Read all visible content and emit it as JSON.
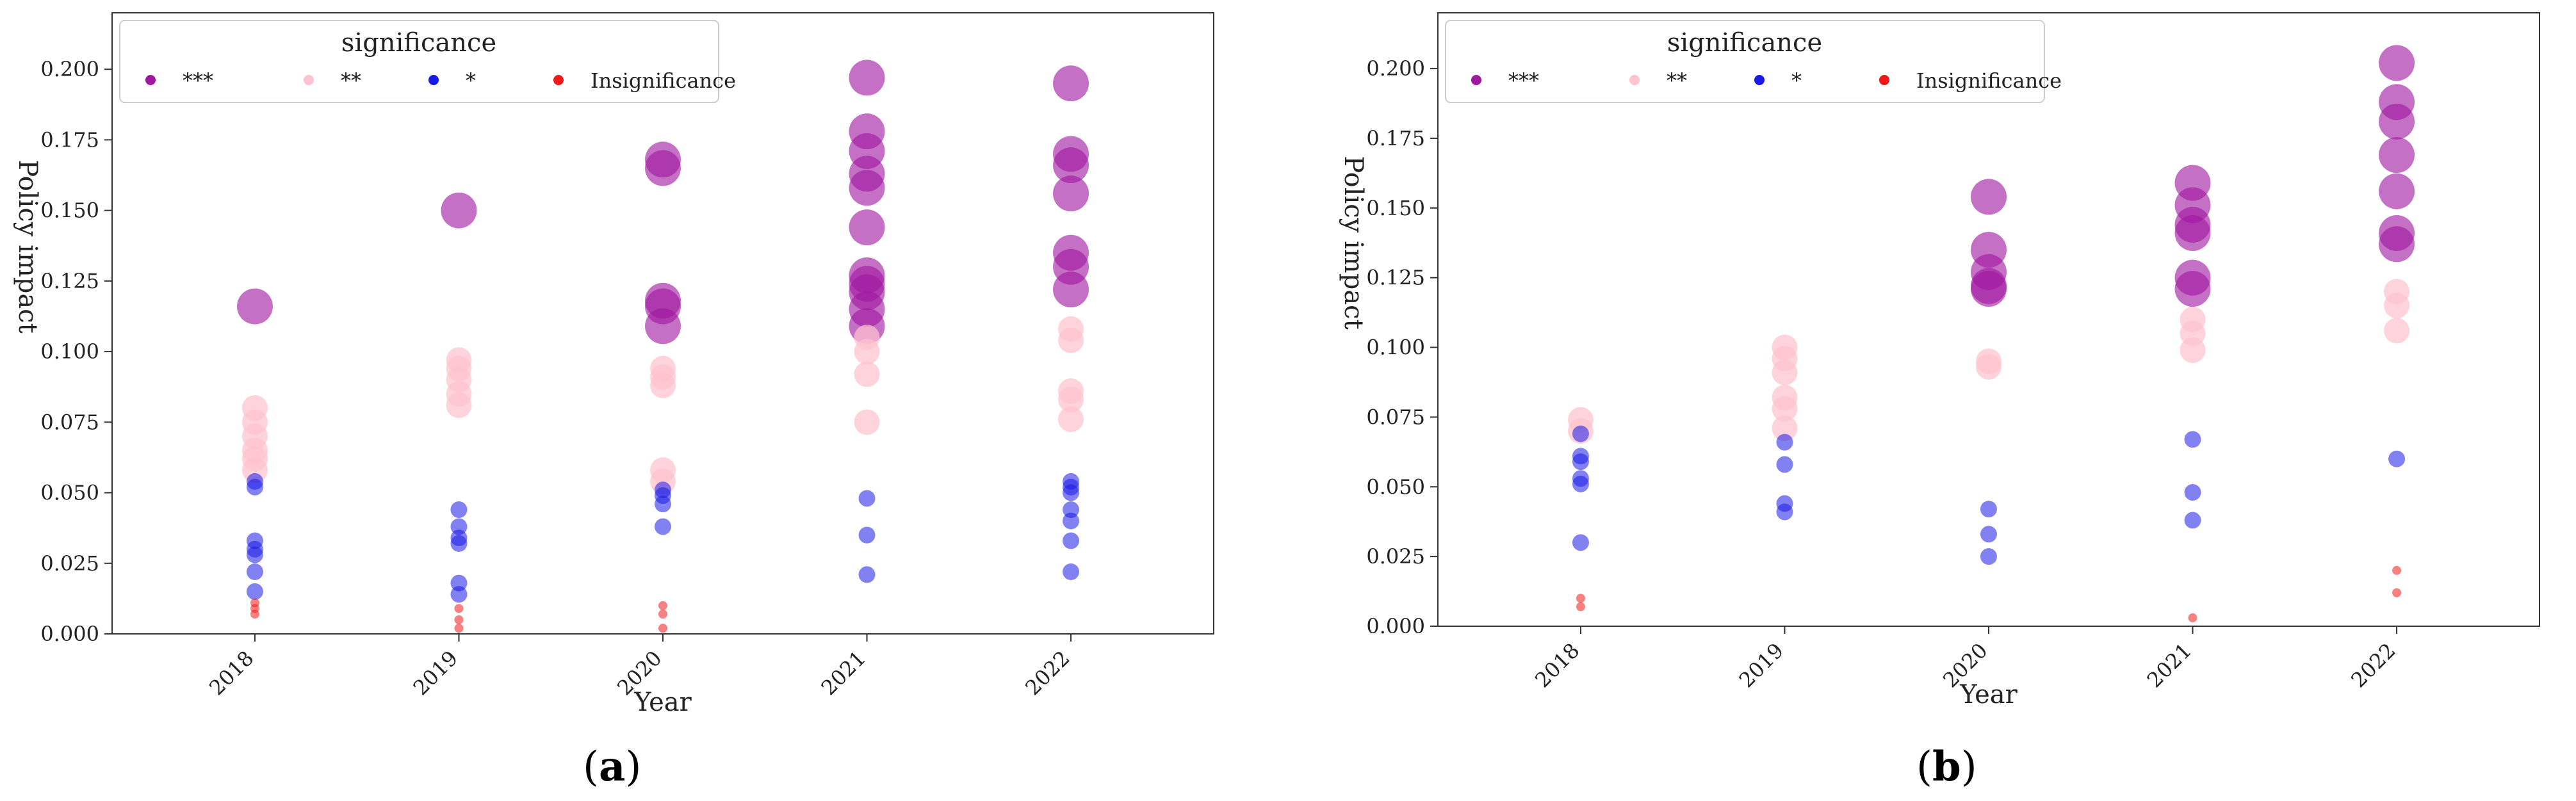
{
  "figure_labels": {
    "a": {
      "open": "(",
      "letter": "a",
      "close": ")"
    },
    "b": {
      "open": "(",
      "letter": "b",
      "close": ")"
    }
  },
  "colors": {
    "***": "#a0189f",
    "**": "#ffc2cf",
    "*": "#1a1ae6",
    "Insignificance": "#f01818"
  },
  "chart_data": [
    {
      "id": "a",
      "type": "scatter",
      "title": "",
      "xlabel": "Year",
      "ylabel": "Policy impact",
      "categories": [
        "2018",
        "2019",
        "2020",
        "2021",
        "2022"
      ],
      "ylim": [
        0,
        0.22
      ],
      "yticks": [
        0.0,
        0.025,
        0.05,
        0.075,
        0.1,
        0.125,
        0.15,
        0.175,
        0.2
      ],
      "ytick_labels": [
        "0.000",
        "0.025",
        "0.050",
        "0.075",
        "0.100",
        "0.125",
        "0.150",
        "0.175",
        "0.200"
      ],
      "legend": {
        "title": "significance",
        "placement": "top-left",
        "entries": [
          "***",
          "**",
          "*",
          "Insignificance"
        ]
      },
      "series": [
        {
          "name": "***",
          "points": [
            [
              "2018",
              0.116
            ],
            [
              "2019",
              0.15
            ],
            [
              "2020",
              0.168
            ],
            [
              "2020",
              0.165
            ],
            [
              "2020",
              0.118
            ],
            [
              "2020",
              0.116
            ],
            [
              "2020",
              0.109
            ],
            [
              "2021",
              0.197
            ],
            [
              "2021",
              0.178
            ],
            [
              "2021",
              0.171
            ],
            [
              "2021",
              0.163
            ],
            [
              "2021",
              0.158
            ],
            [
              "2021",
              0.144
            ],
            [
              "2021",
              0.127
            ],
            [
              "2021",
              0.124
            ],
            [
              "2021",
              0.121
            ],
            [
              "2021",
              0.115
            ],
            [
              "2021",
              0.109
            ],
            [
              "2022",
              0.195
            ],
            [
              "2022",
              0.17
            ],
            [
              "2022",
              0.166
            ],
            [
              "2022",
              0.156
            ],
            [
              "2022",
              0.135
            ],
            [
              "2022",
              0.13
            ],
            [
              "2022",
              0.122
            ]
          ]
        },
        {
          "name": "**",
          "points": [
            [
              "2018",
              0.08
            ],
            [
              "2018",
              0.075
            ],
            [
              "2018",
              0.07
            ],
            [
              "2018",
              0.065
            ],
            [
              "2018",
              0.062
            ],
            [
              "2018",
              0.058
            ],
            [
              "2019",
              0.097
            ],
            [
              "2019",
              0.094
            ],
            [
              "2019",
              0.09
            ],
            [
              "2019",
              0.085
            ],
            [
              "2019",
              0.081
            ],
            [
              "2020",
              0.094
            ],
            [
              "2020",
              0.091
            ],
            [
              "2020",
              0.088
            ],
            [
              "2020",
              0.058
            ],
            [
              "2020",
              0.054
            ],
            [
              "2021",
              0.105
            ],
            [
              "2021",
              0.1
            ],
            [
              "2021",
              0.092
            ],
            [
              "2021",
              0.075
            ],
            [
              "2022",
              0.108
            ],
            [
              "2022",
              0.104
            ],
            [
              "2022",
              0.086
            ],
            [
              "2022",
              0.083
            ],
            [
              "2022",
              0.076
            ]
          ]
        },
        {
          "name": "*",
          "points": [
            [
              "2018",
              0.054
            ],
            [
              "2018",
              0.052
            ],
            [
              "2018",
              0.033
            ],
            [
              "2018",
              0.03
            ],
            [
              "2018",
              0.028
            ],
            [
              "2018",
              0.022
            ],
            [
              "2018",
              0.015
            ],
            [
              "2019",
              0.044
            ],
            [
              "2019",
              0.038
            ],
            [
              "2019",
              0.034
            ],
            [
              "2019",
              0.032
            ],
            [
              "2019",
              0.018
            ],
            [
              "2019",
              0.014
            ],
            [
              "2020",
              0.051
            ],
            [
              "2020",
              0.049
            ],
            [
              "2020",
              0.046
            ],
            [
              "2020",
              0.038
            ],
            [
              "2021",
              0.048
            ],
            [
              "2021",
              0.035
            ],
            [
              "2021",
              0.021
            ],
            [
              "2022",
              0.054
            ],
            [
              "2022",
              0.052
            ],
            [
              "2022",
              0.05
            ],
            [
              "2022",
              0.044
            ],
            [
              "2022",
              0.04
            ],
            [
              "2022",
              0.033
            ],
            [
              "2022",
              0.022
            ]
          ]
        },
        {
          "name": "Insignificance",
          "points": [
            [
              "2018",
              0.011
            ],
            [
              "2018",
              0.009
            ],
            [
              "2018",
              0.007
            ],
            [
              "2019",
              0.009
            ],
            [
              "2019",
              0.005
            ],
            [
              "2019",
              0.002
            ],
            [
              "2020",
              0.01
            ],
            [
              "2020",
              0.007
            ],
            [
              "2020",
              0.002
            ]
          ]
        }
      ]
    },
    {
      "id": "b",
      "type": "scatter",
      "title": "",
      "xlabel": "Year",
      "ylabel": "Policy impact",
      "categories": [
        "2018",
        "2019",
        "2020",
        "2021",
        "2022"
      ],
      "ylim": [
        0,
        0.22
      ],
      "yticks": [
        0.0,
        0.025,
        0.05,
        0.075,
        0.1,
        0.125,
        0.15,
        0.175,
        0.2
      ],
      "ytick_labels": [
        "0.000",
        "0.025",
        "0.050",
        "0.075",
        "0.100",
        "0.125",
        "0.150",
        "0.175",
        "0.200"
      ],
      "legend": {
        "title": "significance",
        "placement": "top-left",
        "entries": [
          "***",
          "**",
          "*",
          "Insignificance"
        ]
      },
      "series": [
        {
          "name": "***",
          "points": [
            [
              "2020",
              0.154
            ],
            [
              "2020",
              0.135
            ],
            [
              "2020",
              0.127
            ],
            [
              "2020",
              0.122
            ],
            [
              "2020",
              0.121
            ],
            [
              "2021",
              0.159
            ],
            [
              "2021",
              0.151
            ],
            [
              "2021",
              0.144
            ],
            [
              "2021",
              0.141
            ],
            [
              "2021",
              0.125
            ],
            [
              "2021",
              0.121
            ],
            [
              "2022",
              0.202
            ],
            [
              "2022",
              0.188
            ],
            [
              "2022",
              0.181
            ],
            [
              "2022",
              0.169
            ],
            [
              "2022",
              0.156
            ],
            [
              "2022",
              0.141
            ],
            [
              "2022",
              0.137
            ]
          ]
        },
        {
          "name": "**",
          "points": [
            [
              "2018",
              0.074
            ],
            [
              "2018",
              0.07
            ],
            [
              "2019",
              0.1
            ],
            [
              "2019",
              0.096
            ],
            [
              "2019",
              0.091
            ],
            [
              "2019",
              0.082
            ],
            [
              "2019",
              0.078
            ],
            [
              "2019",
              0.071
            ],
            [
              "2020",
              0.095
            ],
            [
              "2020",
              0.093
            ],
            [
              "2021",
              0.11
            ],
            [
              "2021",
              0.105
            ],
            [
              "2021",
              0.099
            ],
            [
              "2022",
              0.12
            ],
            [
              "2022",
              0.115
            ],
            [
              "2022",
              0.106
            ]
          ]
        },
        {
          "name": "*",
          "points": [
            [
              "2018",
              0.069
            ],
            [
              "2018",
              0.061
            ],
            [
              "2018",
              0.059
            ],
            [
              "2018",
              0.053
            ],
            [
              "2018",
              0.051
            ],
            [
              "2018",
              0.03
            ],
            [
              "2019",
              0.066
            ],
            [
              "2019",
              0.058
            ],
            [
              "2019",
              0.044
            ],
            [
              "2019",
              0.041
            ],
            [
              "2020",
              0.042
            ],
            [
              "2020",
              0.033
            ],
            [
              "2020",
              0.025
            ],
            [
              "2021",
              0.067
            ],
            [
              "2021",
              0.048
            ],
            [
              "2021",
              0.038
            ],
            [
              "2022",
              0.06
            ]
          ]
        },
        {
          "name": "Insignificance",
          "points": [
            [
              "2018",
              0.01
            ],
            [
              "2018",
              0.007
            ],
            [
              "2021",
              0.003
            ],
            [
              "2022",
              0.02
            ],
            [
              "2022",
              0.012
            ]
          ]
        }
      ]
    }
  ]
}
